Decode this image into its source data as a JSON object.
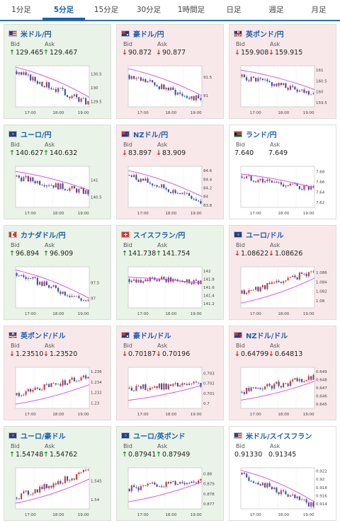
{
  "tabs": [
    "1分足",
    "5分足",
    "15分足",
    "30分足",
    "1時間足",
    "日足",
    "週足",
    "月足"
  ],
  "active_tab": 1,
  "colors": {
    "up": "#1b8f2a",
    "down": "#d02020",
    "candle_up": "#d9342b",
    "candle_down": "#2b4ec9",
    "ma": "#e040e0",
    "accent": "#1a5fb4"
  },
  "quote_labels": {
    "bid": "Bid",
    "ask": "Ask"
  },
  "x_ticks": [
    "17:00",
    "18:00",
    "19:00"
  ],
  "pairs": [
    {
      "name": "米ドル/円",
      "flag": "us-flag-icon",
      "dir": "up",
      "bid": "129.465",
      "ask": "129.467",
      "chart_data": {
        "type": "candlestick",
        "y_ticks": [
          "130.5",
          "130",
          "129.5"
        ],
        "ylim": [
          129.3,
          130.8
        ],
        "start": 130.6,
        "end": 129.45,
        "ma_start": 130.75,
        "ma_end": 129.65
      }
    },
    {
      "name": "豪ドル/円",
      "flag": "au-flag-icon",
      "dir": "down",
      "bid": "90.872",
      "ask": "90.877",
      "chart_data": {
        "type": "candlestick",
        "y_ticks": [
          "91.5",
          "91"
        ],
        "ylim": [
          90.7,
          91.8
        ],
        "start": 91.55,
        "end": 90.88,
        "ma_start": 91.72,
        "ma_end": 91.0
      }
    },
    {
      "name": "英ポンド/円",
      "flag": "uk-flag-icon",
      "dir": "down",
      "bid": "159.908",
      "ask": "159.915",
      "chart_data": {
        "type": "candlestick",
        "y_ticks": [
          "161",
          "160.5",
          "160",
          "159.5"
        ],
        "ylim": [
          159.3,
          161.2
        ],
        "start": 160.7,
        "end": 159.95,
        "ma_start": 161.0,
        "ma_end": 160.1
      }
    },
    {
      "name": "ユーロ/円",
      "flag": "eu-flag-icon",
      "dir": "up",
      "bid": "140.627",
      "ask": "140.632",
      "chart_data": {
        "type": "candlestick",
        "y_ticks": [
          "141",
          "140.5"
        ],
        "ylim": [
          140.2,
          141.4
        ],
        "start": 141.1,
        "end": 140.63,
        "ma_start": 141.25,
        "ma_end": 140.7
      }
    },
    {
      "name": "NZドル/円",
      "flag": "nz-flag-icon",
      "dir": "down",
      "bid": "83.897",
      "ask": "83.909",
      "chart_data": {
        "type": "candlestick",
        "y_ticks": [
          "84.6",
          "84.4",
          "84.2",
          "84",
          "83.8"
        ],
        "ylim": [
          83.75,
          84.7
        ],
        "start": 84.5,
        "end": 83.9,
        "ma_start": 84.6,
        "ma_end": 84.0
      }
    },
    {
      "name": "ランド/円",
      "flag": "za-flag-icon",
      "dir": "flat",
      "bid": "7.640",
      "ask": "7.649",
      "chart_data": {
        "type": "candlestick",
        "y_ticks": [
          "7.68",
          "7.66",
          "7.64",
          "7.62"
        ],
        "ylim": [
          7.61,
          7.69
        ],
        "start": 7.67,
        "end": 7.645,
        "ma_start": 7.675,
        "ma_end": 7.648
      }
    },
    {
      "name": "カナダドル/円",
      "flag": "ca-flag-icon",
      "dir": "up",
      "bid": "96.894",
      "ask": "96.909",
      "chart_data": {
        "type": "candlestick",
        "y_ticks": [
          "97.5",
          "97"
        ],
        "ylim": [
          96.7,
          98.0
        ],
        "start": 97.8,
        "end": 96.9,
        "ma_start": 97.9,
        "ma_end": 97.0
      }
    },
    {
      "name": "スイスフラン/円",
      "flag": "ch-flag-icon",
      "dir": "up",
      "bid": "141.738",
      "ask": "141.754",
      "chart_data": {
        "type": "candlestick",
        "y_ticks": [
          "142",
          "141.8",
          "141.6",
          "141.4",
          "141.2"
        ],
        "ylim": [
          141.1,
          142.1
        ],
        "start": 141.8,
        "end": 141.75,
        "ma_start": 141.85,
        "ma_end": 141.7
      }
    },
    {
      "name": "ユーロ/ドル",
      "flag": "eu-flag-icon",
      "dir": "down",
      "bid": "1.08622",
      "ask": "1.08626",
      "chart_data": {
        "type": "candlestick",
        "y_ticks": [
          "1.086",
          "1.084",
          "1.082",
          "1.08"
        ],
        "ylim": [
          1.0785,
          1.0872
        ],
        "start": 1.0815,
        "end": 1.0862,
        "ma_start": 1.0795,
        "ma_end": 1.0848
      }
    },
    {
      "name": "英ポンド/ドル",
      "flag": "uk-flag-icon",
      "dir": "down",
      "bid": "1.23510",
      "ask": "1.23520",
      "chart_data": {
        "type": "candlestick",
        "y_ticks": [
          "1.236",
          "1.234",
          "1.232",
          "1.23"
        ],
        "ylim": [
          1.229,
          1.2368
        ],
        "start": 1.2315,
        "end": 1.2352,
        "ma_start": 1.2298,
        "ma_end": 1.2335
      }
    },
    {
      "name": "豪ドル/ドル",
      "flag": "au-flag-icon",
      "dir": "down",
      "bid": "0.70187",
      "ask": "0.70196",
      "chart_data": {
        "type": "candlestick",
        "y_ticks": [
          "0.703",
          "0.702",
          "0.701",
          "0.7"
        ],
        "ylim": [
          0.6995,
          0.7036
        ],
        "start": 0.7015,
        "end": 0.7019,
        "ma_start": 0.7003,
        "ma_end": 0.7018
      }
    },
    {
      "name": "NZドル/ドル",
      "flag": "nz-flag-icon",
      "dir": "down",
      "bid": "0.64799",
      "ask": "0.64813",
      "chart_data": {
        "type": "candlestick",
        "y_ticks": [
          "0.649",
          "0.648",
          "0.647",
          "0.646",
          "0.645"
        ],
        "ylim": [
          0.6445,
          0.6495
        ],
        "start": 0.6465,
        "end": 0.6482,
        "ma_start": 0.6455,
        "ma_end": 0.6478
      }
    },
    {
      "name": "ユーロ/豪ドル",
      "flag": "eu-flag-icon",
      "dir": "up",
      "bid": "1.54748",
      "ask": "1.54762",
      "chart_data": {
        "type": "candlestick",
        "y_ticks": [
          "1.545",
          "1.54"
        ],
        "ylim": [
          1.5375,
          1.5485
        ],
        "start": 1.5405,
        "end": 1.5475,
        "ma_start": 1.539,
        "ma_end": 1.5455
      }
    },
    {
      "name": "ユーロ/英ポンド",
      "flag": "eu-flag-icon",
      "dir": "up",
      "bid": "0.87941",
      "ask": "0.87949",
      "chart_data": {
        "type": "candlestick",
        "y_ticks": [
          "0.88",
          "0.879",
          "0.878",
          "0.877"
        ],
        "ylim": [
          0.8765,
          0.8806
        ],
        "start": 0.8785,
        "end": 0.8794,
        "ma_start": 0.8772,
        "ma_end": 0.8792
      }
    },
    {
      "name": "米ドル/スイスフラン",
      "flag": "us-flag-icon",
      "dir": "flat",
      "bid": "0.91330",
      "ask": "0.91345",
      "chart_data": {
        "type": "candlestick",
        "y_ticks": [
          "0.922",
          "0.92",
          "0.918",
          "0.916",
          "0.914"
        ],
        "ylim": [
          0.9128,
          0.9228
        ],
        "start": 0.9212,
        "end": 0.9134,
        "ma_start": 0.9222,
        "ma_end": 0.9145
      }
    }
  ]
}
